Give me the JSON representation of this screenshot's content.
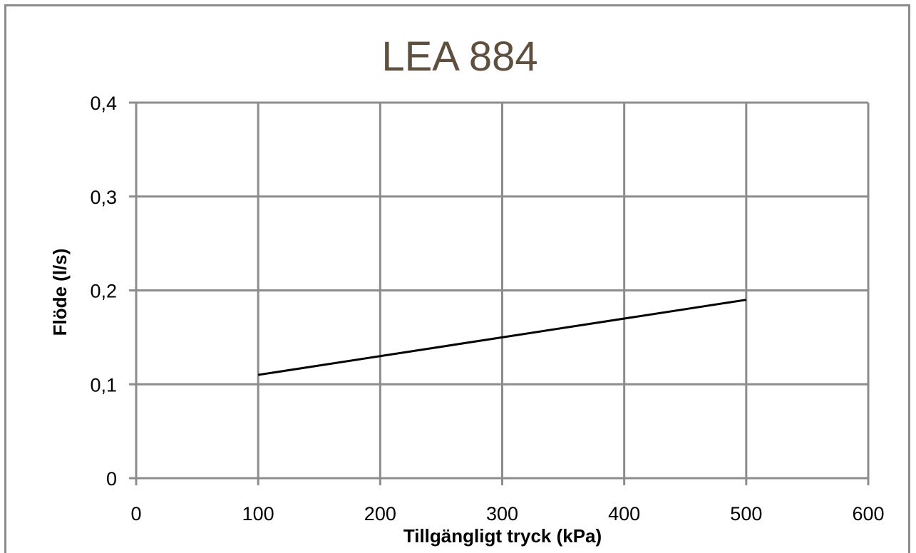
{
  "chart_data": {
    "type": "line",
    "title": "LEA 884",
    "xlabel": "Tillgängligt tryck (kPa)",
    "ylabel": "Flöde (l/s)",
    "xlim": [
      0,
      600
    ],
    "ylim": [
      0,
      0.4
    ],
    "x_ticks": [
      "0",
      "100",
      "200",
      "300",
      "400",
      "500",
      "600"
    ],
    "y_ticks": [
      "0",
      "0,1",
      "0,2",
      "0,3",
      "0,4"
    ],
    "grid": true,
    "legend": "none",
    "series": [
      {
        "x": [
          100,
          500
        ],
        "y": [
          0.11,
          0.19
        ],
        "color": "#000000"
      }
    ]
  },
  "colors": {
    "title": "#5e4f3e",
    "grid": "#8c8c8c",
    "line": "#000000"
  }
}
